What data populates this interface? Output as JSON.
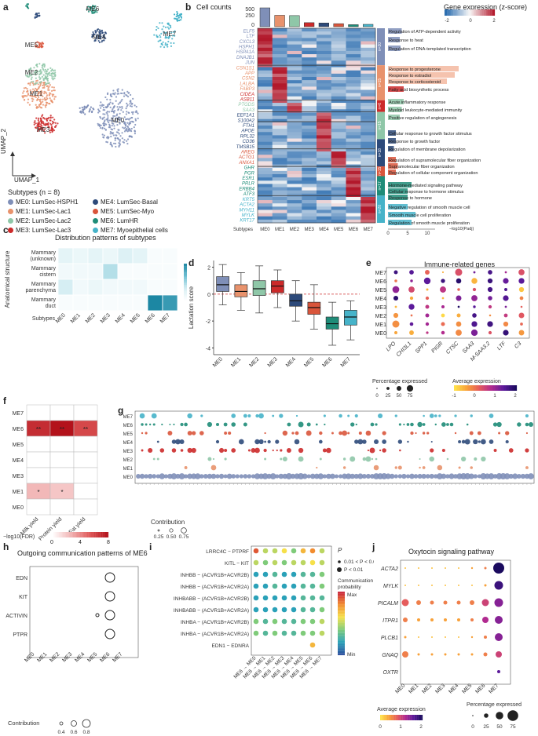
{
  "panels": {
    "a": {
      "letter": "a",
      "xlabel": "UMAP_1",
      "ylabel": "UMAP_2",
      "cluster_labels": [
        "ME0",
        "ME1",
        "ME2",
        "ME3",
        "ME4",
        "ME5",
        "ME6",
        "ME7"
      ],
      "legend_title": "Subtypes (n = 8)",
      "legend": [
        {
          "label": "ME0: LumSec-HSPH1",
          "color": "#7f8fb8"
        },
        {
          "label": "ME1: LumSec-Lac1",
          "color": "#e8926c"
        },
        {
          "label": "ME2: LumSec-Lac2",
          "color": "#8fc7a8"
        },
        {
          "label": "ME3: LumSec-Lac3",
          "color": "#cc2a2a"
        },
        {
          "label": "ME4: LumSec-Basal",
          "color": "#2d4a7a"
        },
        {
          "label": "ME5: LumSec-Myo",
          "color": "#d9553b"
        },
        {
          "label": "ME6: LumHR",
          "color": "#1e8c78"
        },
        {
          "label": "ME7: Myoepithelial cells",
          "color": "#46b3c9"
        }
      ]
    },
    "b": {
      "letter": "b",
      "cell_counts_title": "Cell counts",
      "count_ticks": [
        "500",
        "250",
        "0"
      ],
      "expr_title": "Gene expression (z-score)",
      "expr_ticks": [
        "-2",
        "0",
        "2"
      ],
      "genes": [
        {
          "text": "ELF5",
          "color": "#7f8fb8"
        },
        {
          "text": "LTF",
          "color": "#7f8fb8"
        },
        {
          "text": "CXCL3",
          "color": "#7f8fb8"
        },
        {
          "text": "HSPH1",
          "color": "#7f8fb8"
        },
        {
          "text": "HSPA1A",
          "color": "#7f8fb8"
        },
        {
          "text": "DNAJB1",
          "color": "#7f8fb8"
        },
        {
          "text": "JUN",
          "color": "#7f8fb8"
        },
        {
          "text": "CSN1S1",
          "color": "#e8926c"
        },
        {
          "text": "APP",
          "color": "#e8926c"
        },
        {
          "text": "CSN2",
          "color": "#e8926c"
        },
        {
          "text": "LALBA",
          "color": "#e8926c"
        },
        {
          "text": "FABP3",
          "color": "#e8926c"
        },
        {
          "text": "CIDEA",
          "color": "#cc2a2a"
        },
        {
          "text": "ASB11",
          "color": "#cc2a2a"
        },
        {
          "text": "PTGDS",
          "color": "#8fc7a8"
        },
        {
          "text": "SAA3",
          "color": "#8fc7a8"
        },
        {
          "text": "EEF1A1",
          "color": "#2d4a7a"
        },
        {
          "text": "S100A2",
          "color": "#2d4a7a"
        },
        {
          "text": "FTH1",
          "color": "#2d4a7a"
        },
        {
          "text": "APOE",
          "color": "#2d4a7a"
        },
        {
          "text": "RPL32",
          "color": "#2d4a7a"
        },
        {
          "text": "CD36",
          "color": "#2d4a7a"
        },
        {
          "text": "TMSB15",
          "color": "#2d4a7a"
        },
        {
          "text": "AREG",
          "color": "#d9553b"
        },
        {
          "text": "ACTG1",
          "color": "#d9553b"
        },
        {
          "text": "ANXA1",
          "color": "#d9553b"
        },
        {
          "text": "GHR",
          "color": "#1e8c78"
        },
        {
          "text": "PGR",
          "color": "#1e8c78"
        },
        {
          "text": "ESR1",
          "color": "#1e8c78"
        },
        {
          "text": "PRLR",
          "color": "#1e8c78"
        },
        {
          "text": "ERBB4",
          "color": "#1e8c78"
        },
        {
          "text": "ATF3",
          "color": "#1e8c78"
        },
        {
          "text": "KRT5",
          "color": "#46b3c9"
        },
        {
          "text": "ACTA2",
          "color": "#46b3c9"
        },
        {
          "text": "MYH11",
          "color": "#46b3c9"
        },
        {
          "text": "MYLK",
          "color": "#46b3c9"
        },
        {
          "text": "KRT17",
          "color": "#46b3c9"
        }
      ],
      "xlabel": "Subtypes",
      "subtypes": [
        "ME0",
        "ME1",
        "ME2",
        "ME3",
        "ME4",
        "ME5",
        "ME6",
        "ME7"
      ],
      "cell_counts": [
        560,
        340,
        330,
        120,
        110,
        90,
        60,
        70
      ],
      "count_colors": [
        "#7f8fb8",
        "#e8926c",
        "#8fc7a8",
        "#cc2a2a",
        "#2d4a7a",
        "#d9553b",
        "#1e8c78",
        "#46b3c9"
      ],
      "modules": [
        {
          "tag": "n=20",
          "color": "#7f8fb8"
        },
        {
          "tag": "n=15",
          "color": "#e8926c"
        },
        {
          "tag": "n=6",
          "color": "#cc2a2a"
        },
        {
          "tag": "n=15",
          "color": "#8fc7a8"
        },
        {
          "tag": "n=18",
          "color": "#2d4a7a"
        },
        {
          "tag": "n=15",
          "color": "#d9553b"
        },
        {
          "tag": "n=17",
          "color": "#1e8c78"
        },
        {
          "tag": "n=20",
          "color": "#46b3c9"
        }
      ],
      "go_terms": [
        {
          "text": "Regulation of ATP-dependent activity",
          "val": 3.5,
          "color": "#7f8fb8"
        },
        {
          "text": "Response to heat",
          "val": 3.0,
          "color": "#7f8fb8"
        },
        {
          "text": "Regulation of DNA-templated transcription",
          "val": 3.2,
          "color": "#7f8fb8"
        },
        {
          "text": "Response to progesterone",
          "val": 18,
          "color": "#f3b8a0"
        },
        {
          "text": "Response to estradiol",
          "val": 17,
          "color": "#f3b8a0"
        },
        {
          "text": "Response to corticosteroid",
          "val": 15,
          "color": "#f3b8a0"
        },
        {
          "text": "Fatty acid biosynthetic process",
          "val": 4,
          "color": "#cc2a2a"
        },
        {
          "text": "Acute inflammatory response",
          "val": 4,
          "color": "#8fc7a8"
        },
        {
          "text": "Myeloid leukocyte-mediated immunity",
          "val": 3.5,
          "color": "#8fc7a8"
        },
        {
          "text": "Positive regulation of angiogenesis",
          "val": 3,
          "color": "#8fc7a8"
        },
        {
          "text": "Cellular response to growth factor stimulus",
          "val": 2,
          "color": "#2d4a7a"
        },
        {
          "text": "Response to growth factor",
          "val": 2,
          "color": "#2d4a7a"
        },
        {
          "text": "Regulation of membrane depolarization",
          "val": 1.5,
          "color": "#2d4a7a"
        },
        {
          "text": "Regulation of supramolecular fiber organization",
          "val": 2,
          "color": "#d9553b"
        },
        {
          "text": "Supramolecular fiber organization",
          "val": 2.5,
          "color": "#d9553b"
        },
        {
          "text": "Regulation of cellular component organization",
          "val": 2,
          "color": "#d9553b"
        },
        {
          "text": "Hormone-mediated signaling pathway",
          "val": 6,
          "color": "#1e8c78"
        },
        {
          "text": "Cellular response to hormone stimulus",
          "val": 5,
          "color": "#1e8c78"
        },
        {
          "text": "Response to hormone",
          "val": 5,
          "color": "#1e8c78"
        },
        {
          "text": "Negative regulation of smooth muscle cell",
          "val": 5,
          "color": "#46b3c9"
        },
        {
          "text": "Smooth muscle cell proliferation",
          "val": 7,
          "color": "#46b3c9"
        },
        {
          "text": "Regulation of smooth muscle proliferation",
          "val": 6,
          "color": "#46b3c9"
        }
      ],
      "go_ticks": [
        "0",
        "5",
        "10"
      ],
      "go_xlabel": "−log10(Padj)"
    },
    "c": {
      "letter": "c",
      "title": "Distribution patterns of subtypes",
      "ylabel": "Anatomical structure",
      "xlabel": "Subtypes",
      "rows": [
        "Mammary (unknown)",
        "Mammary cistern",
        "Mammary parenchyma",
        "Mammary duct"
      ],
      "cols": [
        "ME0",
        "ME1",
        "ME2",
        "ME3",
        "ME4",
        "ME5",
        "ME6",
        "ME7"
      ],
      "values": [
        [
          4,
          3,
          4,
          3,
          5,
          4,
          1,
          1
        ],
        [
          2,
          2,
          2,
          8,
          1,
          1,
          1,
          1
        ],
        [
          6,
          2,
          3,
          2,
          2,
          2,
          1,
          1
        ],
        [
          1,
          1,
          1,
          1,
          1,
          1,
          18,
          16
        ]
      ],
      "legend_title": "OR",
      "legend_ticks": [
        "15",
        "10",
        "5",
        "0"
      ],
      "vmax": 18
    },
    "d": {
      "letter": "d",
      "ylabel": "Lactation score",
      "yticks": [
        "2",
        "0",
        "-2",
        "-4"
      ],
      "cats": [
        "ME0",
        "ME1",
        "ME2",
        "ME3",
        "ME4",
        "ME5",
        "ME6",
        "ME7"
      ],
      "colors": [
        "#7f8fb8",
        "#e8926c",
        "#8fc7a8",
        "#cc2a2a",
        "#2d4a7a",
        "#d9553b",
        "#1e8c78",
        "#46b3c9"
      ]
    },
    "e": {
      "letter": "e",
      "title": "Immune-related genes",
      "genes": [
        "LPO",
        "CHI3L1",
        "SPP1",
        "PIGR",
        "CTSC",
        "SAA3",
        "M-SAA3.2",
        "LTF",
        "C3"
      ],
      "rows": [
        "ME7",
        "ME6",
        "ME5",
        "ME4",
        "ME3",
        "ME2",
        "ME1",
        "ME0"
      ],
      "pct_title": "Percentage expressed",
      "pct_ticks": [
        "0",
        "25",
        "50",
        "75"
      ],
      "avg_title": "Average expression",
      "avg_ticks": [
        "-1",
        "0",
        "1",
        "2"
      ]
    },
    "f": {
      "letter": "f",
      "rows": [
        "ME7",
        "ME6",
        "ME5",
        "ME4",
        "ME3",
        "ME1",
        "ME0"
      ],
      "cols": [
        "Milk yield",
        "Protein yield",
        "Fat yield"
      ],
      "legend_title": "−log10(FDR)",
      "legend_ticks": [
        "0",
        "4",
        "8"
      ],
      "stars": [
        {
          "row": 1,
          "col": 0,
          "text": "**"
        },
        {
          "row": 1,
          "col": 1,
          "text": "**"
        },
        {
          "row": 1,
          "col": 2,
          "text": "**"
        },
        {
          "row": 5,
          "col": 0,
          "text": "*"
        },
        {
          "row": 5,
          "col": 1,
          "text": "*"
        }
      ]
    },
    "g": {
      "letter": "g",
      "rows": [
        "ME7",
        "ME6",
        "ME5",
        "ME4",
        "ME3",
        "ME2",
        "ME1",
        "ME0"
      ],
      "legend_title": "Contribution",
      "legend_ticks": [
        "0.25",
        "0.50",
        "0.75"
      ]
    },
    "h": {
      "letter": "h",
      "title": "Outgoing communication patterns of ME6",
      "rows": [
        "EDN",
        "KIT",
        "ACTIVIN",
        "PTPR"
      ],
      "cols": [
        "ME0",
        "ME1",
        "ME2",
        "ME3",
        "ME4",
        "ME5",
        "ME6",
        "ME7"
      ],
      "legend_title": "Contribution",
      "legend_ticks": [
        "0.4",
        "0.6",
        "0.8"
      ]
    },
    "i": {
      "letter": "i",
      "rows": [
        "LRRC4C − PTPRF",
        "KITL − KIT",
        "INHBB − (ACVR1B+ACVR2B)",
        "INHBB − (ACVR1B+ACVR2A)",
        "INHBABB − (ACVR1B+ACVR2B)",
        "INHBABB − (ACVR1B+ACVR2A)",
        "INHBA − (ACVR1B+ACVR2B)",
        "INHBA − (ACVR1B+ACVR2A)",
        "EDN1 − EDNRA"
      ],
      "cols": [
        "ME6 → ME0",
        "ME6 → ME1",
        "ME6 → ME2",
        "ME6 → ME3",
        "ME6 → ME4",
        "ME6 → ME5",
        "ME6 → ME6",
        "ME6 → ME7"
      ],
      "p_title": "P",
      "p_items": [
        "0.01 < P < 0.05",
        "P < 0.01"
      ],
      "prob_title": "Communication probability",
      "prob_max": "Max",
      "prob_min": "Min"
    },
    "j": {
      "letter": "j",
      "title": "Oxytocin signaling pathway",
      "genes": [
        "ACTA2",
        "MYLK",
        "PICALM",
        "ITPR1",
        "PLCB1",
        "GNAQ",
        "OXTR"
      ],
      "cols": [
        "ME0",
        "ME1",
        "ME2",
        "ME3",
        "ME4",
        "ME5",
        "ME6",
        "ME7"
      ],
      "avg_title": "Average expression",
      "avg_ticks": [
        "0",
        "1",
        "2"
      ],
      "pct_title": "Percentage expressed",
      "pct_ticks": [
        "0",
        "25",
        "50",
        "75"
      ]
    }
  }
}
